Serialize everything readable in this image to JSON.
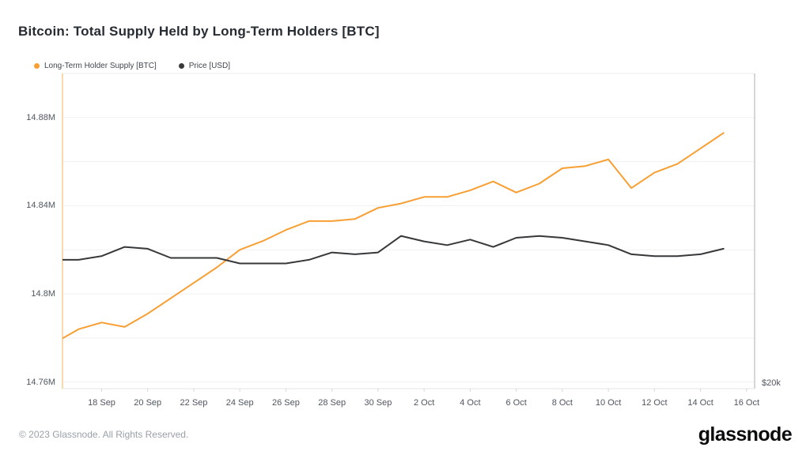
{
  "page": {
    "title": "Bitcoin: Total Supply Held by Long-Term Holders [BTC]"
  },
  "footer": {
    "copyright": "© 2023 Glassnode. All Rights Reserved.",
    "brand": "glassnode"
  },
  "chart_data": {
    "type": "line",
    "x": [
      "16 Sep",
      "17 Sep",
      "18 Sep",
      "19 Sep",
      "20 Sep",
      "21 Sep",
      "22 Sep",
      "23 Sep",
      "24 Sep",
      "25 Sep",
      "26 Sep",
      "27 Sep",
      "28 Sep",
      "29 Sep",
      "30 Sep",
      "1 Oct",
      "2 Oct",
      "3 Oct",
      "4 Oct",
      "5 Oct",
      "6 Oct",
      "7 Oct",
      "8 Oct",
      "9 Oct",
      "10 Oct",
      "11 Oct",
      "12 Oct",
      "13 Oct",
      "14 Oct",
      "15 Oct"
    ],
    "x_domain": [
      0.3,
      30.35
    ],
    "x_ticks": [
      {
        "label": "18 Sep",
        "index": 2
      },
      {
        "label": "20 Sep",
        "index": 4
      },
      {
        "label": "22 Sep",
        "index": 6
      },
      {
        "label": "24 Sep",
        "index": 8
      },
      {
        "label": "26 Sep",
        "index": 10
      },
      {
        "label": "28 Sep",
        "index": 12
      },
      {
        "label": "30 Sep",
        "index": 14
      },
      {
        "label": "2 Oct",
        "index": 16
      },
      {
        "label": "4 Oct",
        "index": 18
      },
      {
        "label": "6 Oct",
        "index": 20
      },
      {
        "label": "8 Oct",
        "index": 22
      },
      {
        "label": "10 Oct",
        "index": 24
      },
      {
        "label": "12 Oct",
        "index": 26
      },
      {
        "label": "14 Oct",
        "index": 28
      },
      {
        "label": "16 Oct",
        "index": 30
      }
    ],
    "left_axis": {
      "title": "Supply [BTC] (millions)",
      "range": [
        14.757,
        14.9
      ],
      "grid": true,
      "grid_values": [
        14.76,
        14.78,
        14.8,
        14.82,
        14.84,
        14.86,
        14.88
      ],
      "ticks": [
        {
          "label": "14.88M",
          "value": 14.88
        },
        {
          "label": "14.84M",
          "value": 14.84
        },
        {
          "label": "14.8M",
          "value": 14.8
        },
        {
          "label": "14.76M",
          "value": 14.76
        }
      ]
    },
    "right_axis": {
      "title": "Price [USD]",
      "range": [
        19680,
        36850
      ],
      "ticks": [
        {
          "label": "$20k",
          "value": 20000
        }
      ]
    },
    "legend_position": "top-left",
    "series": [
      {
        "name": "Long-Term Holder Supply [BTC]",
        "axis": "left",
        "color": "#F89F33",
        "unit": "M BTC",
        "values": [
          14.778,
          14.784,
          14.787,
          14.785,
          14.791,
          14.798,
          14.805,
          14.812,
          14.82,
          14.824,
          14.829,
          14.833,
          14.833,
          14.834,
          14.839,
          14.841,
          14.844,
          14.844,
          14.847,
          14.851,
          14.846,
          14.85,
          14.857,
          14.858,
          14.861,
          14.848,
          14.855,
          14.859,
          14.866,
          14.873
        ]
      },
      {
        "name": "Price [USD]",
        "axis": "right",
        "color": "#37383A",
        "unit": "USD",
        "values": [
          26700,
          26700,
          26900,
          27400,
          27300,
          26800,
          26800,
          26800,
          26500,
          26500,
          26500,
          26700,
          27100,
          27000,
          27100,
          28000,
          27700,
          27500,
          27800,
          27400,
          27900,
          28000,
          27900,
          27700,
          27500,
          27000,
          26900,
          26900,
          27000,
          27300
        ]
      }
    ]
  }
}
